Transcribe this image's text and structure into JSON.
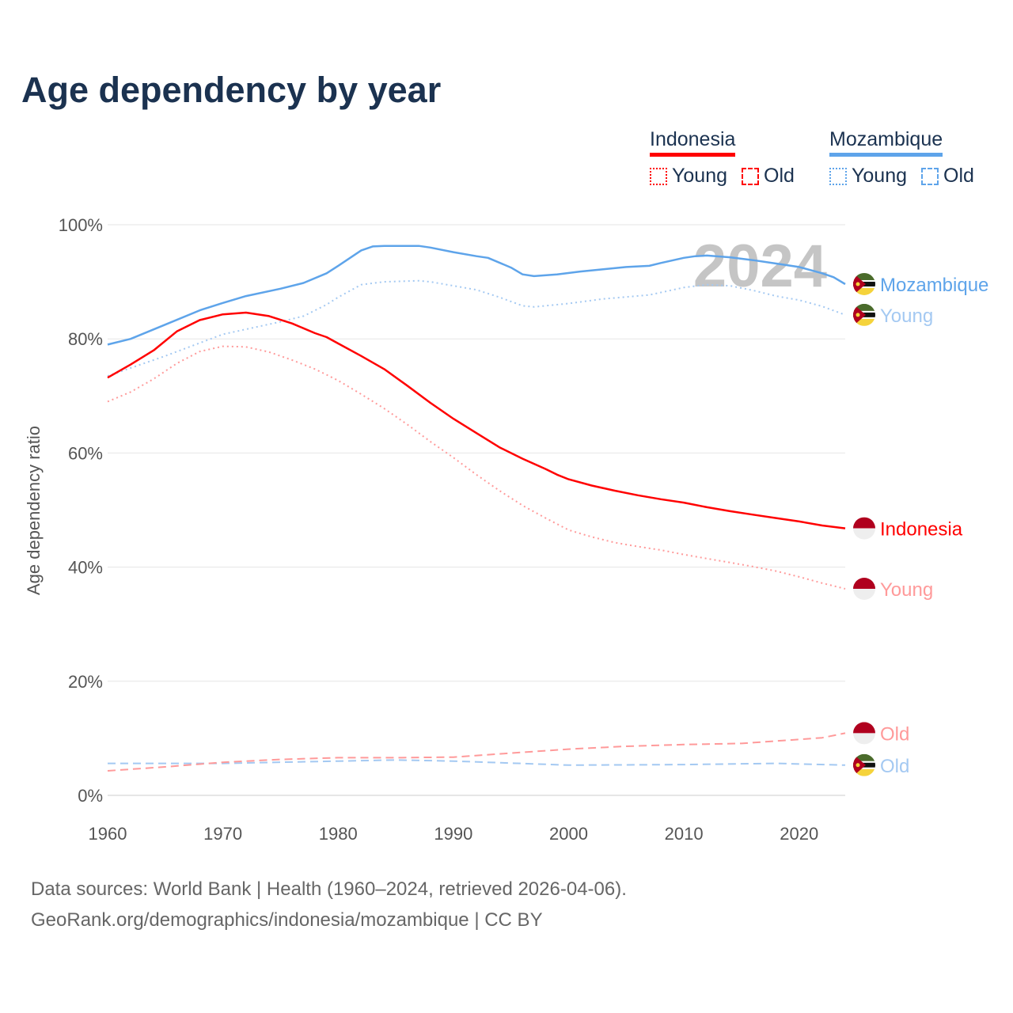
{
  "title": "Age dependency by year",
  "legend": {
    "groups": [
      {
        "name": "Indonesia",
        "color": "#ff0000",
        "young": "Young",
        "old": "Old"
      },
      {
        "name": "Mozambique",
        "color": "#5ea4ea",
        "young": "Young",
        "old": "Old"
      }
    ]
  },
  "footer": {
    "line1": "Data sources: World Bank | Health (1960–2024, retrieved 2026-04-06).",
    "line2": "GeoRank.org/demographics/indonesia/mozambique | CC BY"
  },
  "chart_data": {
    "type": "line",
    "title": "Age dependency by year",
    "xlabel": "",
    "ylabel": "Age dependency ratio",
    "xlim": [
      1960,
      2024
    ],
    "ylim": [
      0,
      100
    ],
    "x_ticks": [
      "1960",
      "1970",
      "1980",
      "1990",
      "2000",
      "2010",
      "2020"
    ],
    "y_ticks": [
      "0%",
      "20%",
      "40%",
      "60%",
      "80%",
      "100%"
    ],
    "watermark_year": "2024",
    "grid": true,
    "series": [
      {
        "name": "Mozambique",
        "end_label": "Mozambique",
        "country": "mozambique",
        "style": "solid",
        "color": "#5ea4ea",
        "points": [
          [
            1960,
            79
          ],
          [
            1962,
            80
          ],
          [
            1965,
            82.5
          ],
          [
            1968,
            85
          ],
          [
            1970,
            86.3
          ],
          [
            1972,
            87.5
          ],
          [
            1975,
            88.8
          ],
          [
            1977,
            89.8
          ],
          [
            1979,
            91.5
          ],
          [
            1980,
            92.8
          ],
          [
            1982,
            95.5
          ],
          [
            1983,
            96.2
          ],
          [
            1984,
            96.3
          ],
          [
            1987,
            96.3
          ],
          [
            1988,
            96.0
          ],
          [
            1990,
            95.2
          ],
          [
            1992,
            94.5
          ],
          [
            1993,
            94.2
          ],
          [
            1995,
            92.5
          ],
          [
            1996,
            91.3
          ],
          [
            1997,
            91.0
          ],
          [
            1999,
            91.3
          ],
          [
            2001,
            91.8
          ],
          [
            2003,
            92.2
          ],
          [
            2005,
            92.6
          ],
          [
            2007,
            92.8
          ],
          [
            2008,
            93.3
          ],
          [
            2010,
            94.2
          ],
          [
            2011,
            94.5
          ],
          [
            2012,
            94.6
          ],
          [
            2014,
            94.3
          ],
          [
            2016,
            93.8
          ],
          [
            2018,
            93.2
          ],
          [
            2020,
            92.6
          ],
          [
            2022,
            91.5
          ],
          [
            2023,
            90.8
          ],
          [
            2024,
            89.6
          ]
        ]
      },
      {
        "name": "Mozambique Young",
        "end_label": "Young",
        "country": "mozambique",
        "style": "dotted",
        "color": "#a4c9f2",
        "points": [
          [
            1960,
            73.5
          ],
          [
            1965,
            77
          ],
          [
            1970,
            80.8
          ],
          [
            1975,
            83
          ],
          [
            1977,
            84
          ],
          [
            1979,
            86
          ],
          [
            1980,
            87.3
          ],
          [
            1982,
            89.5
          ],
          [
            1984,
            90
          ],
          [
            1987,
            90.2
          ],
          [
            1988,
            90
          ],
          [
            1990,
            89.3
          ],
          [
            1992,
            88.6
          ],
          [
            1994,
            87.3
          ],
          [
            1996,
            85.8
          ],
          [
            1997,
            85.6
          ],
          [
            2000,
            86.2
          ],
          [
            2003,
            87
          ],
          [
            2007,
            87.7
          ],
          [
            2010,
            89
          ],
          [
            2012,
            89.5
          ],
          [
            2014,
            89.3
          ],
          [
            2016,
            88.5
          ],
          [
            2018,
            87.5
          ],
          [
            2020,
            86.8
          ],
          [
            2022,
            85.7
          ],
          [
            2024,
            84.2
          ]
        ]
      },
      {
        "name": "Mozambique Old",
        "end_label": "Old",
        "country": "mozambique",
        "style": "dashed",
        "color": "#a4c9f2",
        "points": [
          [
            1960,
            5.6
          ],
          [
            1970,
            5.6
          ],
          [
            1980,
            6.0
          ],
          [
            1985,
            6.2
          ],
          [
            1990,
            6.0
          ],
          [
            2000,
            5.3
          ],
          [
            2010,
            5.4
          ],
          [
            2018,
            5.6
          ],
          [
            2024,
            5.3
          ]
        ]
      },
      {
        "name": "Indonesia",
        "end_label": "Indonesia",
        "country": "indonesia",
        "style": "solid",
        "color": "#ff0000",
        "points": [
          [
            1960,
            73.2
          ],
          [
            1962,
            75.5
          ],
          [
            1964,
            78
          ],
          [
            1966,
            81.3
          ],
          [
            1968,
            83.3
          ],
          [
            1970,
            84.3
          ],
          [
            1972,
            84.6
          ],
          [
            1974,
            84
          ],
          [
            1976,
            82.7
          ],
          [
            1978,
            81
          ],
          [
            1979,
            80.3
          ],
          [
            1980,
            79.2
          ],
          [
            1982,
            77
          ],
          [
            1984,
            74.7
          ],
          [
            1986,
            71.8
          ],
          [
            1988,
            68.8
          ],
          [
            1990,
            66
          ],
          [
            1992,
            63.5
          ],
          [
            1994,
            61
          ],
          [
            1996,
            59
          ],
          [
            1998,
            57.2
          ],
          [
            1999,
            56.2
          ],
          [
            2000,
            55.4
          ],
          [
            2002,
            54.3
          ],
          [
            2004,
            53.4
          ],
          [
            2006,
            52.6
          ],
          [
            2008,
            51.9
          ],
          [
            2010,
            51.3
          ],
          [
            2012,
            50.5
          ],
          [
            2014,
            49.8
          ],
          [
            2016,
            49.2
          ],
          [
            2018,
            48.6
          ],
          [
            2020,
            48
          ],
          [
            2022,
            47.3
          ],
          [
            2024,
            46.8
          ]
        ]
      },
      {
        "name": "Indonesia Young",
        "end_label": "Young",
        "country": "indonesia",
        "style": "dotted",
        "color": "#ff9a9a",
        "points": [
          [
            1960,
            69
          ],
          [
            1962,
            70.7
          ],
          [
            1964,
            73
          ],
          [
            1966,
            75.7
          ],
          [
            1968,
            77.8
          ],
          [
            1970,
            78.7
          ],
          [
            1972,
            78.6
          ],
          [
            1974,
            77.7
          ],
          [
            1976,
            76.3
          ],
          [
            1978,
            74.7
          ],
          [
            1980,
            72.7
          ],
          [
            1982,
            70.3
          ],
          [
            1984,
            67.8
          ],
          [
            1986,
            65
          ],
          [
            1988,
            62
          ],
          [
            1990,
            59.2
          ],
          [
            1992,
            56.2
          ],
          [
            1994,
            53.4
          ],
          [
            1996,
            50.8
          ],
          [
            1998,
            48.6
          ],
          [
            2000,
            46.5
          ],
          [
            2002,
            45.3
          ],
          [
            2004,
            44.3
          ],
          [
            2006,
            43.6
          ],
          [
            2008,
            43
          ],
          [
            2010,
            42.2
          ],
          [
            2012,
            41.5
          ],
          [
            2014,
            40.8
          ],
          [
            2016,
            40.1
          ],
          [
            2018,
            39.3
          ],
          [
            2020,
            38.3
          ],
          [
            2022,
            37.2
          ],
          [
            2024,
            36.2
          ]
        ]
      },
      {
        "name": "Indonesia Old",
        "end_label": "Old",
        "country": "indonesia",
        "style": "dashed",
        "color": "#ff9a9a",
        "points": [
          [
            1960,
            4.3
          ],
          [
            1965,
            5
          ],
          [
            1970,
            5.8
          ],
          [
            1975,
            6.3
          ],
          [
            1980,
            6.6
          ],
          [
            1985,
            6.6
          ],
          [
            1990,
            6.7
          ],
          [
            1995,
            7.4
          ],
          [
            2000,
            8.1
          ],
          [
            2005,
            8.6
          ],
          [
            2010,
            8.9
          ],
          [
            2015,
            9.1
          ],
          [
            2020,
            9.8
          ],
          [
            2022,
            10.1
          ],
          [
            2024,
            10.9
          ]
        ]
      }
    ]
  }
}
